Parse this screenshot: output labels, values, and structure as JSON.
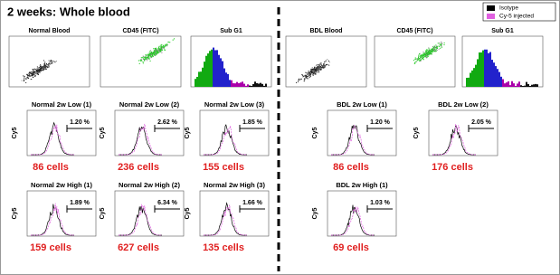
{
  "title": "2 weeks: Whole blood",
  "legend": [
    "Isotype",
    "Cy-5 injected"
  ],
  "y_axis_label": "Cy5",
  "groups": [
    {
      "scatter_panels": [
        "Normal Blood",
        "CD45 (FITC)",
        "Sub G1"
      ],
      "histogram_rows": [
        [
          {
            "title": "Normal 2w Low (1)",
            "percent": "1.20 %",
            "cells": "86 cells"
          },
          {
            "title": "Normal 2w Low (2)",
            "percent": "2.62 %",
            "cells": "236 cells"
          },
          {
            "title": "Normal 2w Low (3)",
            "percent": "1.85 %",
            "cells": "155 cells"
          }
        ],
        [
          {
            "title": "Normal 2w High (1)",
            "percent": "1.89 %",
            "cells": "159 cells"
          },
          {
            "title": "Normal 2w High (2)",
            "percent": "6.34 %",
            "cells": "627 cells"
          },
          {
            "title": "Normal 2w High (3)",
            "percent": "1.66 %",
            "cells": "135 cells"
          }
        ]
      ]
    },
    {
      "scatter_panels": [
        "BDL Blood",
        "CD45 (FITC)",
        "Sub G1"
      ],
      "histogram_rows": [
        [
          {
            "title": "BDL 2w Low (1)",
            "percent": "1.20 %",
            "cells": "86 cells"
          },
          {
            "title": "BDL 2w Low (2)",
            "percent": "2.05 %",
            "cells": "176 cells"
          }
        ],
        [
          {
            "title": "BDL 2w High (1)",
            "percent": "1.03 %",
            "cells": "69 cells"
          }
        ]
      ]
    }
  ]
}
